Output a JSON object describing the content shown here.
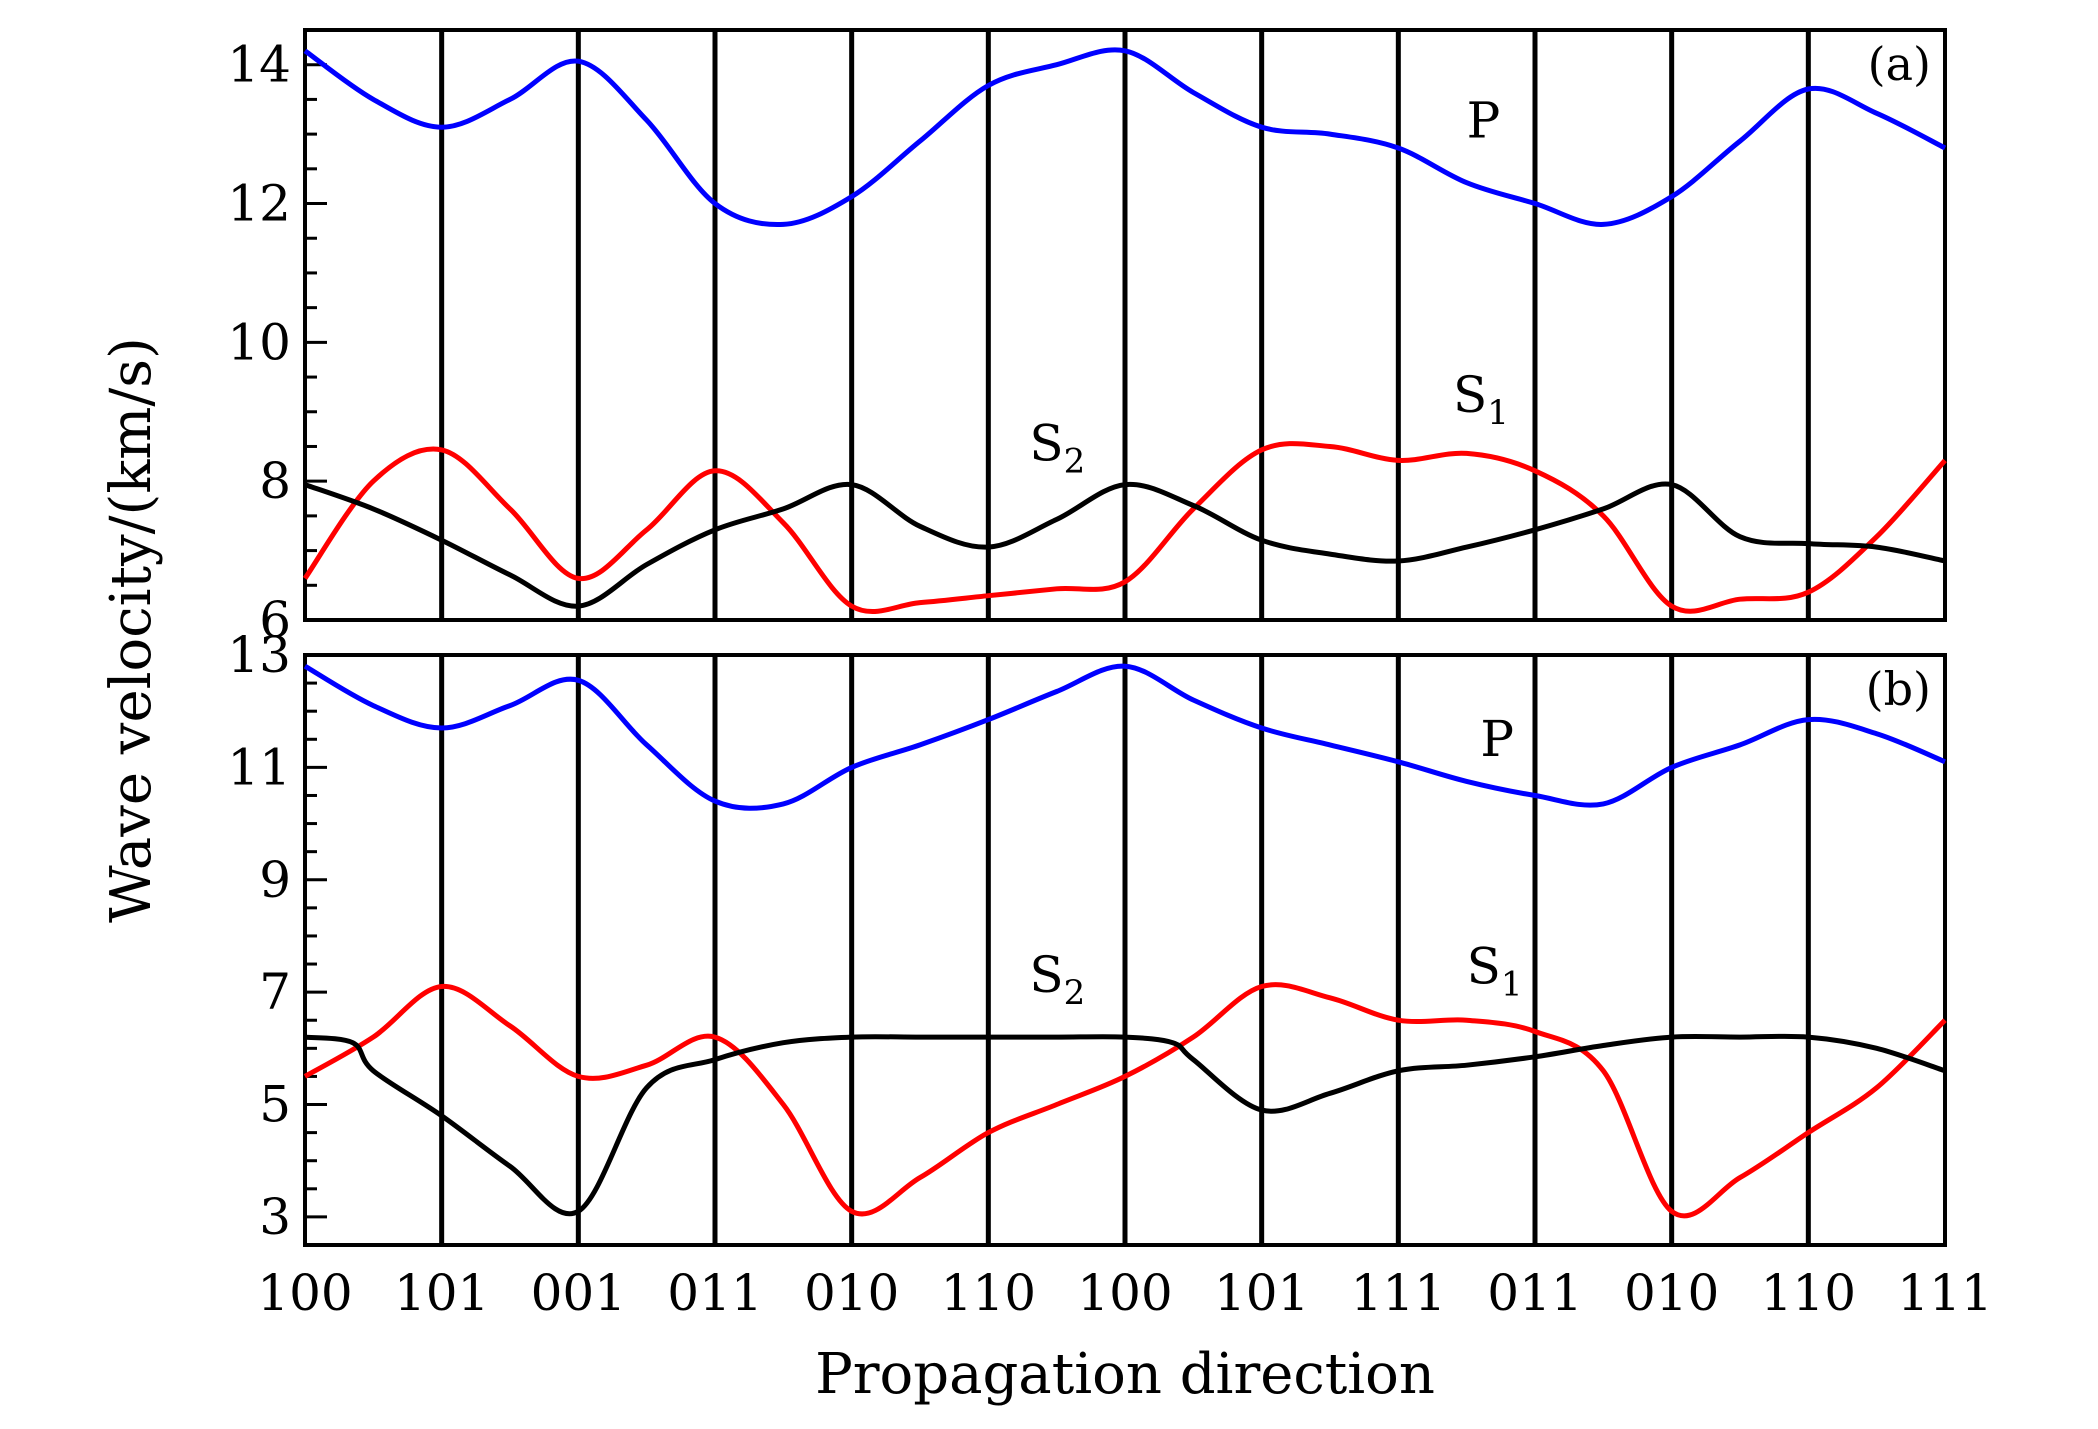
{
  "chart_data": {
    "type": "line",
    "xlabel": "Propagation direction",
    "ylabel": "Wave velocity/(km/s)",
    "x_ticks": [
      "100",
      "101",
      "001",
      "011",
      "010",
      "110",
      "100",
      "101",
      "111",
      "011",
      "010",
      "110",
      "111"
    ],
    "grid": "vertical lines at each direction tick",
    "panels": [
      {
        "label": "(a)",
        "ylim": [
          6,
          14.5
        ],
        "y_ticks": [
          "6",
          "8",
          "10",
          "12",
          "14"
        ],
        "series": [
          {
            "name": "P",
            "color": "#0000ff",
            "x": [
              0,
              0.5,
              1,
              1.5,
              2,
              2.5,
              3,
              3.5,
              4,
              4.5,
              5,
              5.5,
              6,
              6.5,
              7,
              7.5,
              8,
              8.5,
              9,
              9.5,
              10,
              10.5,
              11,
              11.5,
              12
            ],
            "y": [
              14.2,
              13.5,
              13.1,
              13.5,
              14.05,
              13.2,
              12.0,
              11.7,
              12.1,
              12.9,
              13.7,
              14.0,
              14.2,
              13.6,
              13.1,
              13.0,
              12.8,
              12.3,
              12.0,
              11.7,
              12.1,
              12.9,
              13.65,
              13.3,
              12.8
            ]
          },
          {
            "name": "S1",
            "color": "#ff0000",
            "x": [
              0,
              0.5,
              1,
              1.5,
              2,
              2.5,
              3,
              3.5,
              4,
              4.5,
              5,
              5.5,
              6,
              6.5,
              7,
              7.5,
              8,
              8.5,
              9,
              9.5,
              10,
              10.5,
              11,
              11.5,
              12
            ],
            "y": [
              6.6,
              8.0,
              8.45,
              7.6,
              6.6,
              7.3,
              8.15,
              7.4,
              6.2,
              6.25,
              6.35,
              6.45,
              6.55,
              7.6,
              8.45,
              8.5,
              8.3,
              8.4,
              8.15,
              7.5,
              6.2,
              6.3,
              6.4,
              7.2,
              8.3
            ]
          },
          {
            "name": "S2",
            "color": "#000000",
            "x": [
              0,
              0.5,
              1,
              1.5,
              2,
              2.5,
              3,
              3.5,
              4,
              4.5,
              5,
              5.5,
              6,
              6.5,
              7,
              7.5,
              8,
              8.5,
              9,
              9.5,
              10,
              10.5,
              11,
              11.5,
              12
            ],
            "y": [
              7.95,
              7.6,
              7.15,
              6.65,
              6.2,
              6.8,
              7.3,
              7.6,
              7.95,
              7.35,
              7.05,
              7.45,
              7.95,
              7.65,
              7.15,
              6.95,
              6.85,
              7.05,
              7.3,
              7.6,
              7.95,
              7.2,
              7.1,
              7.05,
              6.85
            ]
          }
        ],
        "annotations": [
          {
            "text": "P",
            "x": 8.5,
            "y": 12.95
          },
          {
            "text": "S",
            "sub": "1",
            "x": 8.4,
            "y": 9.0
          },
          {
            "text": "S",
            "sub": "2",
            "x": 5.3,
            "y": 8.3
          }
        ]
      },
      {
        "label": "(b)",
        "ylim": [
          2.5,
          13
        ],
        "y_ticks": [
          "3",
          "5",
          "7",
          "9",
          "11",
          "13"
        ],
        "series": [
          {
            "name": "P",
            "color": "#0000ff",
            "x": [
              0,
              0.5,
              1,
              1.5,
              2,
              2.5,
              3,
              3.5,
              4,
              4.5,
              5,
              5.5,
              6,
              6.5,
              7,
              7.5,
              8,
              8.5,
              9,
              9.5,
              10,
              10.5,
              11,
              11.5,
              12
            ],
            "y": [
              12.8,
              12.1,
              11.7,
              12.1,
              12.55,
              11.4,
              10.4,
              10.35,
              11.0,
              11.4,
              11.85,
              12.35,
              12.8,
              12.2,
              11.7,
              11.4,
              11.1,
              10.75,
              10.5,
              10.35,
              11.0,
              11.4,
              11.85,
              11.6,
              11.1
            ]
          },
          {
            "name": "S1",
            "color": "#ff0000",
            "x": [
              0,
              0.5,
              1,
              1.5,
              2,
              2.5,
              3,
              3.5,
              4,
              4.5,
              5,
              5.5,
              6,
              6.5,
              7,
              7.5,
              8,
              8.5,
              9,
              9.5,
              10,
              10.5,
              11,
              11.5,
              12
            ],
            "y": [
              5.5,
              6.2,
              7.1,
              6.4,
              5.5,
              5.7,
              6.2,
              5.0,
              3.1,
              3.7,
              4.5,
              5.0,
              5.5,
              6.2,
              7.1,
              6.9,
              6.5,
              6.5,
              6.3,
              5.6,
              3.1,
              3.7,
              4.5,
              5.3,
              6.5
            ]
          },
          {
            "name": "S2",
            "color": "#000000",
            "x": [
              0,
              0.35,
              0.5,
              1,
              1.5,
              2,
              2.5,
              3,
              3.5,
              4,
              4.5,
              5,
              5.5,
              6,
              6.35,
              6.5,
              7,
              7.5,
              8,
              8.5,
              9,
              9.5,
              10,
              10.5,
              11,
              11.5,
              12
            ],
            "y": [
              6.2,
              6.1,
              5.6,
              4.8,
              3.9,
              3.1,
              5.3,
              5.8,
              6.1,
              6.2,
              6.2,
              6.2,
              6.2,
              6.2,
              6.1,
              5.8,
              4.9,
              5.2,
              5.6,
              5.7,
              5.85,
              6.05,
              6.2,
              6.2,
              6.2,
              6.0,
              5.6
            ]
          }
        ],
        "annotations": [
          {
            "text": "P",
            "x": 8.6,
            "y": 11.2
          },
          {
            "text": "S",
            "sub": "1",
            "x": 8.5,
            "y": 7.15
          },
          {
            "text": "S",
            "sub": "2",
            "x": 5.3,
            "y": 7.0
          }
        ]
      }
    ]
  }
}
